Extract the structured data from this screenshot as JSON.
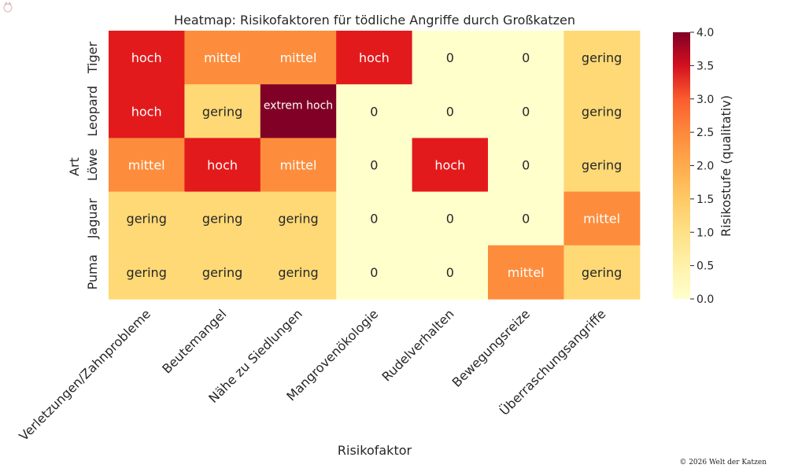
{
  "chart_data": {
    "type": "heatmap",
    "title": "Heatmap: Risikofaktoren für tödliche Angriffe durch Großkatzen",
    "xlabel": "Risikofaktor",
    "ylabel": "Art",
    "rows": [
      "Tiger",
      "Leopard",
      "Löwe",
      "Jaguar",
      "Puma"
    ],
    "columns": [
      "Verletzungen/Zahnprobleme",
      "Beutemangel",
      "Nähe zu Siedlungen",
      "Mangrovenökologie",
      "Rudelverhalten",
      "Bewegungsreize",
      "Überraschungsangriffe"
    ],
    "values": [
      [
        3,
        2,
        2,
        3,
        0,
        0,
        1
      ],
      [
        3,
        1,
        4,
        0,
        0,
        0,
        1
      ],
      [
        2,
        3,
        2,
        0,
        3,
        0,
        1
      ],
      [
        1,
        1,
        1,
        0,
        0,
        0,
        2
      ],
      [
        1,
        1,
        1,
        0,
        0,
        2,
        1
      ]
    ],
    "cell_labels": [
      [
        "hoch",
        "mittel",
        "mittel",
        "hoch",
        "0",
        "0",
        "gering"
      ],
      [
        "hoch",
        "gering",
        "extrem hoch",
        "0",
        "0",
        "0",
        "gering"
      ],
      [
        "mittel",
        "hoch",
        "mittel",
        "0",
        "hoch",
        "0",
        "gering"
      ],
      [
        "gering",
        "gering",
        "gering",
        "0",
        "0",
        "0",
        "mittel"
      ],
      [
        "gering",
        "gering",
        "gering",
        "0",
        "0",
        "mittel",
        "gering"
      ]
    ],
    "colorbar": {
      "label": "Risikostufe (qualitativ)",
      "range": [
        0,
        4
      ],
      "ticks": [
        "0.0",
        "0.5",
        "1.0",
        "1.5",
        "2.0",
        "2.5",
        "3.0",
        "3.5",
        "4.0"
      ],
      "colormap": "YlOrRd"
    },
    "colors": {
      "0": "#ffffcc",
      "1": "#fed976",
      "2": "#fd8d3c",
      "3": "#e31a1c",
      "4": "#800026"
    }
  },
  "footer": {
    "copyright": "© 2026 Welt der Katzen"
  }
}
